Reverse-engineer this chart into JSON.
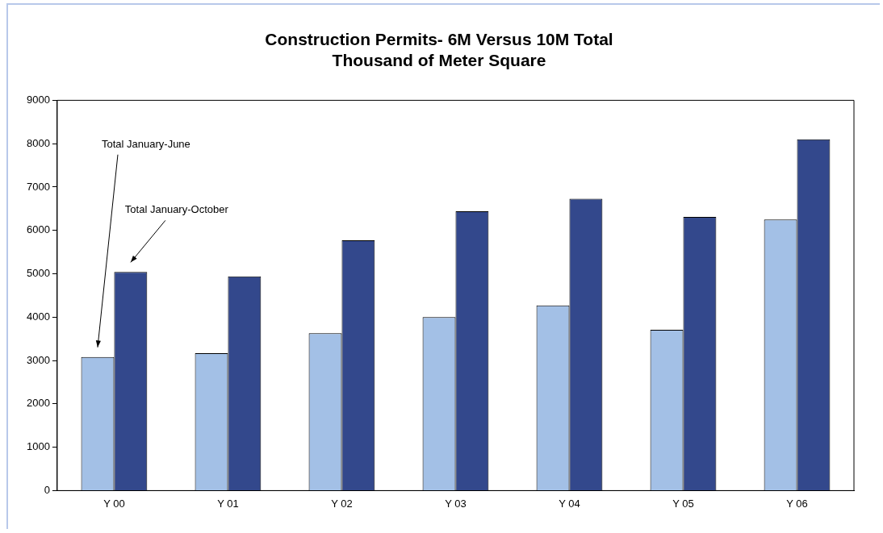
{
  "chart_data": {
    "type": "bar",
    "title": [
      "Construction Permits- 6M Versus 10M Total",
      "Thousand of Meter Square"
    ],
    "categories": [
      "Y 00",
      "Y 01",
      "Y 02",
      "Y 03",
      "Y 04",
      "Y 05",
      "Y 06"
    ],
    "series": [
      {
        "color": "#a3c0e6",
        "values": [
          3080,
          3170,
          3630,
          4000,
          4270,
          3710,
          6250
        ]
      },
      {
        "color": "#33488c",
        "values": [
          5040,
          4940,
          5770,
          6440,
          6730,
          6310,
          8100
        ]
      }
    ],
    "ylim": [
      0,
      9000
    ],
    "yticks": [
      0,
      1000,
      2000,
      3000,
      4000,
      5000,
      6000,
      7000,
      8000,
      9000
    ],
    "grid": false,
    "legend": false,
    "annotations": [
      "Total January-June",
      "Total January-October"
    ]
  }
}
